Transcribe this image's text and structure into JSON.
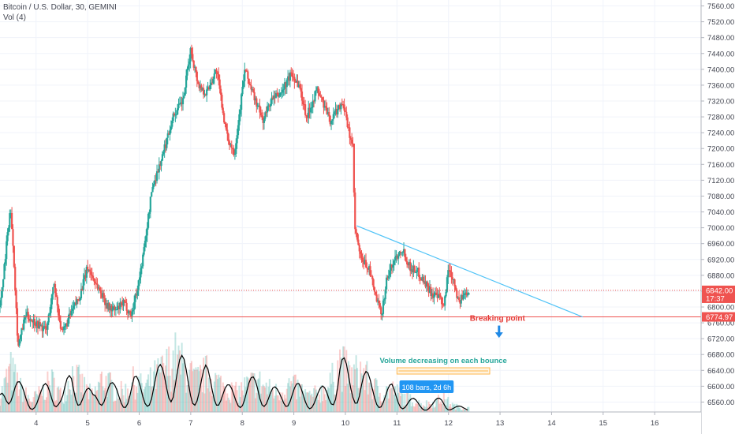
{
  "header": {
    "symbol_line": "Bitcoin / U.S. Dollar, 30, GEMINI",
    "volume_line": "Vol (4)"
  },
  "chart_data": {
    "type": "candlestick",
    "title": "Bitcoin / U.S. Dollar, 30, GEMINI",
    "y_axis": {
      "ticks": [
        "7560.00",
        "7520.00",
        "7480.00",
        "7440.00",
        "7400.00",
        "7360.00",
        "7320.00",
        "7280.00",
        "7240.00",
        "7200.00",
        "7160.00",
        "7120.00",
        "7080.00",
        "7040.00",
        "7000.00",
        "6960.00",
        "6920.00",
        "6880.00",
        "6840.00",
        "6800.00",
        "6760.00",
        "6720.00",
        "6680.00",
        "6640.00",
        "6600.00",
        "6560.00"
      ],
      "range": [
        6535,
        7575
      ],
      "position": "right"
    },
    "x_axis": {
      "ticks": [
        "4",
        "5",
        "6",
        "7",
        "8",
        "9",
        "10",
        "11",
        "12",
        "13",
        "14",
        "15",
        "16"
      ],
      "range": [
        3.3,
        16.9
      ]
    },
    "price_path": [
      [
        3.3,
        6800
      ],
      [
        3.5,
        7050
      ],
      [
        3.55,
        6970
      ],
      [
        3.65,
        6700
      ],
      [
        3.8,
        6780
      ],
      [
        4.0,
        6760
      ],
      [
        4.2,
        6740
      ],
      [
        4.35,
        6860
      ],
      [
        4.5,
        6730
      ],
      [
        4.7,
        6790
      ],
      [
        4.85,
        6830
      ],
      [
        5.0,
        6900
      ],
      [
        5.2,
        6850
      ],
      [
        5.4,
        6800
      ],
      [
        5.55,
        6790
      ],
      [
        5.7,
        6810
      ],
      [
        5.85,
        6780
      ],
      [
        6.0,
        6870
      ],
      [
        6.1,
        6950
      ],
      [
        6.25,
        7100
      ],
      [
        6.45,
        7180
      ],
      [
        6.65,
        7280
      ],
      [
        6.85,
        7320
      ],
      [
        7.0,
        7450
      ],
      [
        7.15,
        7360
      ],
      [
        7.3,
        7340
      ],
      [
        7.5,
        7400
      ],
      [
        7.7,
        7230
      ],
      [
        7.85,
        7190
      ],
      [
        8.05,
        7400
      ],
      [
        8.2,
        7340
      ],
      [
        8.4,
        7270
      ],
      [
        8.55,
        7320
      ],
      [
        8.75,
        7340
      ],
      [
        8.95,
        7390
      ],
      [
        9.1,
        7360
      ],
      [
        9.25,
        7280
      ],
      [
        9.45,
        7350
      ],
      [
        9.55,
        7320
      ],
      [
        9.7,
        7270
      ],
      [
        9.85,
        7300
      ],
      [
        9.95,
        7320
      ],
      [
        10.05,
        7250
      ],
      [
        10.15,
        7200
      ],
      [
        10.18,
        7000
      ],
      [
        10.3,
        6920
      ],
      [
        10.45,
        6900
      ],
      [
        10.6,
        6820
      ],
      [
        10.7,
        6780
      ],
      [
        10.8,
        6870
      ],
      [
        10.95,
        6920
      ],
      [
        11.1,
        6950
      ],
      [
        11.25,
        6900
      ],
      [
        11.4,
        6890
      ],
      [
        11.55,
        6860
      ],
      [
        11.7,
        6830
      ],
      [
        11.85,
        6820
      ],
      [
        11.9,
        6790
      ],
      [
        12.0,
        6900
      ],
      [
        12.1,
        6870
      ],
      [
        12.2,
        6810
      ],
      [
        12.3,
        6830
      ],
      [
        12.4,
        6845
      ]
    ],
    "volume_path": [
      [
        3.3,
        20
      ],
      [
        3.5,
        55
      ],
      [
        3.7,
        30
      ],
      [
        3.9,
        15
      ],
      [
        4.1,
        25
      ],
      [
        4.3,
        40
      ],
      [
        4.5,
        20
      ],
      [
        4.7,
        50
      ],
      [
        4.9,
        35
      ],
      [
        5.1,
        20
      ],
      [
        5.3,
        45
      ],
      [
        5.5,
        30
      ],
      [
        5.7,
        25
      ],
      [
        5.9,
        40
      ],
      [
        6.1,
        30
      ],
      [
        6.3,
        45
      ],
      [
        6.5,
        55
      ],
      [
        6.7,
        70
      ],
      [
        6.9,
        55
      ],
      [
        7.1,
        40
      ],
      [
        7.3,
        50
      ],
      [
        7.5,
        40
      ],
      [
        7.7,
        30
      ],
      [
        7.9,
        25
      ],
      [
        8.1,
        35
      ],
      [
        8.3,
        40
      ],
      [
        8.5,
        30
      ],
      [
        8.7,
        25
      ],
      [
        8.9,
        35
      ],
      [
        9.1,
        30
      ],
      [
        9.3,
        20
      ],
      [
        9.5,
        25
      ],
      [
        9.7,
        35
      ],
      [
        9.9,
        65
      ],
      [
        10.1,
        45
      ],
      [
        10.3,
        55
      ],
      [
        10.5,
        35
      ],
      [
        10.7,
        25
      ],
      [
        10.9,
        30
      ],
      [
        11.1,
        20
      ],
      [
        11.3,
        15
      ],
      [
        11.5,
        10
      ],
      [
        11.7,
        12
      ],
      [
        11.9,
        18
      ],
      [
        12.1,
        8
      ],
      [
        12.3,
        5
      ]
    ],
    "trendline": {
      "start": [
        10.22,
        7005
      ],
      "end": [
        14.6,
        6775
      ]
    },
    "support_line": {
      "value": 6774.97
    },
    "current_price_line": {
      "value": 6842.0
    },
    "price_labels": [
      {
        "text": "6842.00",
        "value": 6842.0,
        "color": "#ef5350"
      },
      {
        "text": "17:37",
        "value": 6822.0,
        "color": "#ef5350"
      },
      {
        "text": "6774.97",
        "value": 6774.97,
        "color": "#ef5350"
      }
    ],
    "annotations": {
      "breaking_point": {
        "text": "Breaking point",
        "x": 12.95,
        "y": 6765,
        "arrow_to_y": 6722,
        "color": "#e53935"
      },
      "volume_note": {
        "text": "Volume decreasing on each bounce",
        "x_start": 11.0,
        "x_end": 12.8,
        "color": "#26a69a"
      },
      "date_range": {
        "text": "108 bars, 2d 6h",
        "x_start": 11.05,
        "x_end": 12.1,
        "color": "#2196f3"
      },
      "range_bar_color": "#ffb74d"
    },
    "colors": {
      "up": "#26a69a",
      "down": "#ef5350",
      "trendline": "#4fc3f7",
      "volume_ma": "#000000",
      "axis_text": "#434651",
      "grid": "#f0f3fa"
    },
    "grid": true
  }
}
